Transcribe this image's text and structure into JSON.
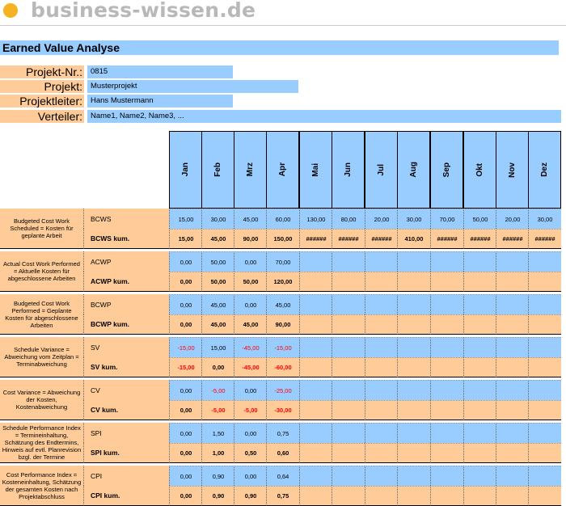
{
  "brand": {
    "logo_text": "business-wissen.de",
    "accent": "#f5b324"
  },
  "title": "Earned Value Analyse",
  "info": [
    {
      "label": "Projekt-Nr.:",
      "value": "0815"
    },
    {
      "label": "Projekt:",
      "value": "Musterprojekt"
    },
    {
      "label": "Projektleiter:",
      "value": "Hans Mustermann"
    },
    {
      "label": "Verteiler:",
      "value": "Name1, Name2, Name3, ..."
    }
  ],
  "months": [
    "Jan",
    "Feb",
    "Mrz",
    "Apr",
    "Mai",
    "Jun",
    "Jul",
    "Aug",
    "Sep",
    "Okt",
    "Nov",
    "Dez"
  ],
  "groups": [
    {
      "description": "Budgeted Cost Work Scheduled = Kosten für geplante Arbeit",
      "rows": [
        {
          "code": "BCWS",
          "bold": false,
          "values": [
            "15,00",
            "30,00",
            "45,00",
            "60,00",
            "130,00",
            "80,00",
            "20,00",
            "30,00",
            "70,00",
            "50,00",
            "20,00",
            "30,00"
          ]
        },
        {
          "code": "BCWS kum.",
          "bold": true,
          "values": [
            "15,00",
            "45,00",
            "90,00",
            "150,00",
            "######",
            "######",
            "######",
            "410,00",
            "######",
            "######",
            "######",
            "######"
          ]
        }
      ]
    },
    {
      "description": "Actual Cost Work Performed = Aktuelle Kosten für abgeschlossene Arbeiten",
      "rows": [
        {
          "code": "ACWP",
          "bold": false,
          "values": [
            "0,00",
            "50,00",
            "0,00",
            "70,00",
            "",
            "",
            "",
            "",
            "",
            "",
            "",
            ""
          ]
        },
        {
          "code": "ACWP kum.",
          "bold": true,
          "values": [
            "0,00",
            "50,00",
            "50,00",
            "120,00",
            "",
            "",
            "",
            "",
            "",
            "",
            "",
            ""
          ]
        }
      ]
    },
    {
      "description": "Budgeted Cost Work Performed = Geplante Kosten für abgeschlossene Arbeiten",
      "rows": [
        {
          "code": "BCWP",
          "bold": false,
          "values": [
            "0,00",
            "45,00",
            "0,00",
            "45,00",
            "",
            "",
            "",
            "",
            "",
            "",
            "",
            ""
          ]
        },
        {
          "code": "BCWP kum.",
          "bold": true,
          "values": [
            "0,00",
            "45,00",
            "45,00",
            "90,00",
            "",
            "",
            "",
            "",
            "",
            "",
            "",
            ""
          ]
        }
      ]
    },
    {
      "description": "Schedule Variance = Abweichung vom Zeitplan = Terminabweichung",
      "rows": [
        {
          "code": "SV",
          "bold": false,
          "values": [
            "-15,00",
            "15,00",
            "-45,00",
            "-15,00",
            "",
            "",
            "",
            "",
            "",
            "",
            "",
            ""
          ]
        },
        {
          "code": "SV kum.",
          "bold": true,
          "values": [
            "-15,00",
            "0,00",
            "-45,00",
            "-60,00",
            "",
            "",
            "",
            "",
            "",
            "",
            "",
            ""
          ]
        }
      ]
    },
    {
      "description": "Cost Variance = Abweichung der Kosten, Kostenabweichung",
      "rows": [
        {
          "code": "CV",
          "bold": false,
          "values": [
            "0,00",
            "-5,00",
            "0,00",
            "-25,00",
            "",
            "",
            "",
            "",
            "",
            "",
            "",
            ""
          ]
        },
        {
          "code": "CV kum.",
          "bold": true,
          "values": [
            "0,00",
            "-5,00",
            "-5,00",
            "-30,00",
            "",
            "",
            "",
            "",
            "",
            "",
            "",
            ""
          ]
        }
      ]
    },
    {
      "description": "Schedule Performance Index = Termineinhaltung, Schätzung des Endtermins, Hinweis auf evtl. Planrevision bzgl. der Termine",
      "rows": [
        {
          "code": "SPI",
          "bold": false,
          "values": [
            "0,00",
            "1,50",
            "0,00",
            "0,75",
            "",
            "",
            "",
            "",
            "",
            "",
            "",
            ""
          ]
        },
        {
          "code": "SPI kum.",
          "bold": true,
          "values": [
            "0,00",
            "1,00",
            "0,50",
            "0,60",
            "",
            "",
            "",
            "",
            "",
            "",
            "",
            ""
          ]
        }
      ]
    },
    {
      "description": "Cost Performance Index = Kosteneinhaltung, Schätzung der gesamten Kosten nach Projektabschluss",
      "rows": [
        {
          "code": "CPI",
          "bold": false,
          "values": [
            "0,00",
            "0,90",
            "0,00",
            "0,64",
            "",
            "",
            "",
            "",
            "",
            "",
            "",
            ""
          ]
        },
        {
          "code": "CPI kum.",
          "bold": true,
          "values": [
            "0,00",
            "0,90",
            "0,90",
            "0,75",
            "",
            "",
            "",
            "",
            "",
            "",
            "",
            ""
          ]
        }
      ]
    }
  ],
  "colors": {
    "header_blue": "#99ccff",
    "label_orange": "#ffcc99",
    "negative_red": "#ff0000"
  }
}
